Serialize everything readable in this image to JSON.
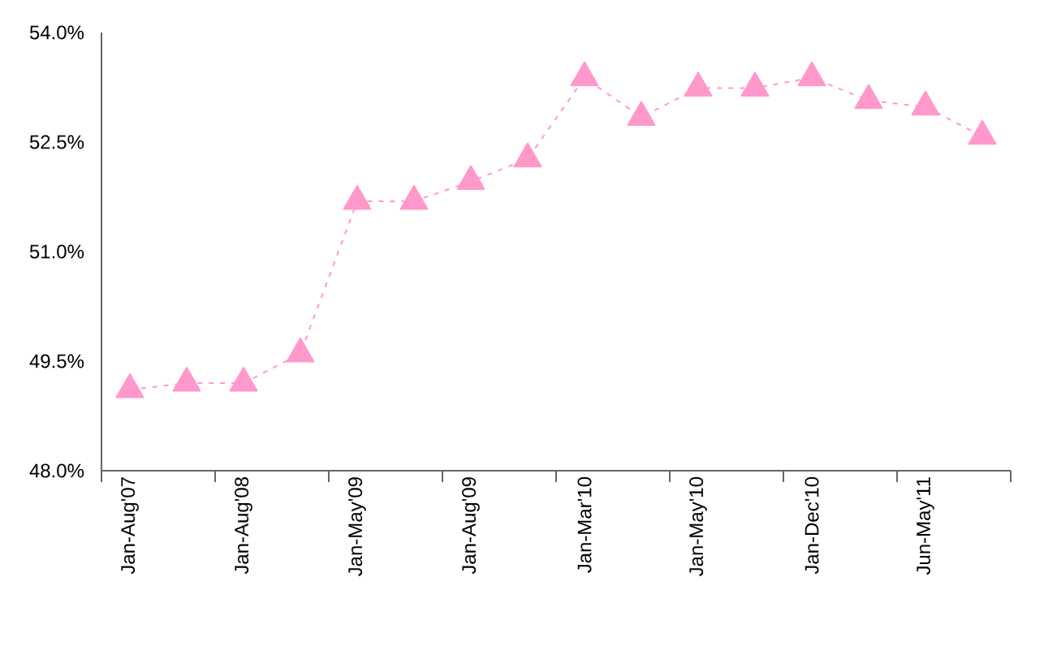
{
  "chart_data": {
    "type": "line",
    "categories": [
      "Jan-Aug'07",
      null,
      "Jan-Aug'08",
      null,
      "Jan-May'09",
      null,
      "Jan-Aug'09",
      null,
      "Jan-Mar'10",
      null,
      "Jan-May'10",
      null,
      "Jan-Dec'10",
      null,
      "Jun-May'11",
      null
    ],
    "series": [
      {
        "color": "#ff99cc",
        "values": [
          49.11,
          49.2,
          49.2,
          49.6,
          51.69,
          51.69,
          51.96,
          52.27,
          53.38,
          52.84,
          53.24,
          53.24,
          53.38,
          53.07,
          52.98,
          52.58
        ]
      }
    ],
    "ylim": [
      48.0,
      54.0
    ],
    "yticks": [
      {
        "value": 48.0,
        "label": "48.0%"
      },
      {
        "value": 49.5,
        "label": "49.5%"
      },
      {
        "value": 51.0,
        "label": "51.0%"
      },
      {
        "value": 52.5,
        "label": "52.5%"
      },
      {
        "value": 54.0,
        "label": "54.0%"
      }
    ],
    "marker": "triangle",
    "line_style": "dashed",
    "grid": false,
    "legend": false
  }
}
